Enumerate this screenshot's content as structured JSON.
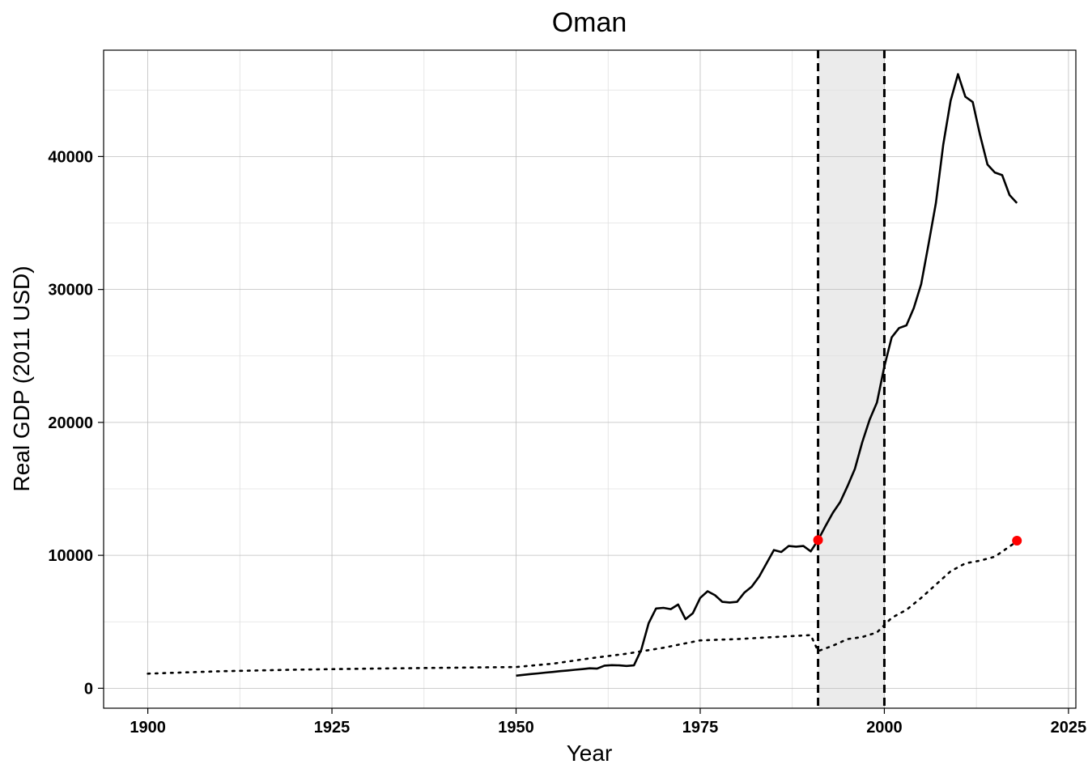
{
  "chart_data": {
    "type": "line",
    "title": "Oman",
    "xlabel": "Year",
    "ylabel": "Real GDP (2011 USD)",
    "xlim": [
      1894,
      2026
    ],
    "ylim": [
      -1500,
      48000
    ],
    "xticks": [
      1900,
      1925,
      1950,
      1975,
      2000,
      2025
    ],
    "yticks": [
      0,
      10000,
      20000,
      30000,
      40000
    ],
    "xtick_labels": [
      "1900",
      "1925",
      "1950",
      "1975",
      "2000",
      "2025"
    ],
    "ytick_labels": [
      "0",
      "10000",
      "20000",
      "30000",
      "40000"
    ],
    "grid": true,
    "legend": "none",
    "shaded_period": [
      1991,
      2000
    ],
    "vertical_lines": [
      1991,
      2000
    ],
    "colors": {
      "line": "#000000",
      "marker": "#ff0000",
      "shade": "#ebebeb",
      "grid_major": "#bdbdbd",
      "grid_minor": "#e0e0e0"
    },
    "series": [
      {
        "style": "solid",
        "x": [
          1950,
          1951,
          1952,
          1953,
          1954,
          1955,
          1956,
          1957,
          1958,
          1959,
          1960,
          1961,
          1962,
          1963,
          1964,
          1965,
          1966,
          1967,
          1968,
          1969,
          1970,
          1971,
          1972,
          1973,
          1974,
          1975,
          1976,
          1977,
          1978,
          1979,
          1980,
          1981,
          1982,
          1983,
          1984,
          1985,
          1986,
          1987,
          1988,
          1989,
          1990,
          1991,
          1992,
          1993,
          1994,
          1995,
          1996,
          1997,
          1998,
          1999,
          2000,
          2001,
          2002,
          2003,
          2004,
          2005,
          2006,
          2007,
          2008,
          2009,
          2010,
          2011,
          2012,
          2013,
          2014,
          2015,
          2016,
          2017,
          2018
        ],
        "y": [
          950,
          1010,
          1070,
          1120,
          1180,
          1230,
          1290,
          1340,
          1390,
          1440,
          1500,
          1480,
          1700,
          1740,
          1720,
          1680,
          1720,
          2900,
          4900,
          6000,
          6050,
          5950,
          6300,
          5200,
          5650,
          6800,
          7300,
          7000,
          6500,
          6450,
          6500,
          7200,
          7650,
          8400,
          9400,
          10400,
          10250,
          10700,
          10650,
          10700,
          10300,
          11150,
          12200,
          13200,
          14000,
          15200,
          16500,
          18500,
          20200,
          21500,
          24200,
          26400,
          27100,
          27300,
          28600,
          30400,
          33400,
          36500,
          40900,
          44200,
          46200,
          44500,
          44100,
          41600,
          39400,
          38800,
          38600,
          37100,
          36500
        ]
      },
      {
        "style": "dotted",
        "x": [
          1900,
          1910,
          1920,
          1930,
          1940,
          1950,
          1955,
          1960,
          1965,
          1970,
          1975,
          1980,
          1985,
          1990,
          1991,
          1993,
          1995,
          1997,
          1999,
          2001,
          2003,
          2005,
          2007,
          2009,
          2011,
          2013,
          2015,
          2018
        ],
        "y": [
          1100,
          1280,
          1400,
          1480,
          1540,
          1600,
          1850,
          2250,
          2600,
          3050,
          3600,
          3700,
          3850,
          4000,
          2800,
          3200,
          3700,
          3850,
          4200,
          5300,
          5900,
          6800,
          7800,
          8800,
          9400,
          9600,
          9900,
          11050
        ]
      }
    ],
    "points": [
      {
        "x": 1991,
        "y": 11150
      },
      {
        "x": 2018,
        "y": 11100
      }
    ]
  }
}
